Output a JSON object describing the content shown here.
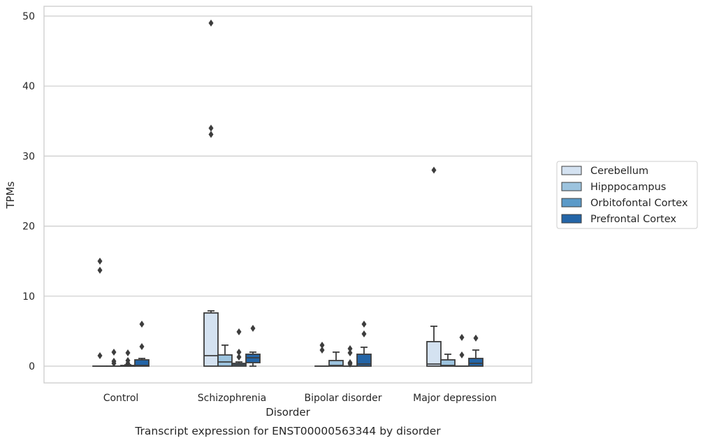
{
  "chart_data": {
    "type": "box",
    "title": "",
    "caption": "Transcript expression for ENST00000563344 by disorder",
    "xlabel": "Disorder",
    "ylabel": "TPMs",
    "ylim": [
      -2.3,
      51.5
    ],
    "yticks": [
      0,
      10,
      20,
      30,
      40,
      50
    ],
    "grid": true,
    "legend_position": "right",
    "categories": [
      "Control",
      "Schizophrenia",
      "Bipolar disorder",
      "Major depression"
    ],
    "series": [
      {
        "name": "Cerebellum",
        "color": "#d4e2f1",
        "boxes": [
          {
            "q1": 0,
            "median": 0,
            "q3": 0,
            "whisker_low": 0,
            "whisker_high": 0,
            "outliers": [
              15.0,
              13.7,
              1.5
            ]
          },
          {
            "q1": 0,
            "median": 1.5,
            "q3": 7.6,
            "whisker_low": 0,
            "whisker_high": 7.9,
            "outliers": [
              49.0,
              34.0,
              33.1
            ]
          },
          {
            "q1": 0,
            "median": 0,
            "q3": 0,
            "whisker_low": 0,
            "whisker_high": 0,
            "outliers": [
              3.0,
              2.3
            ]
          },
          {
            "q1": 0,
            "median": 0.3,
            "q3": 3.5,
            "whisker_low": 0,
            "whisker_high": 5.7,
            "outliers": [
              28.0
            ]
          }
        ]
      },
      {
        "name": "Hipppocampus",
        "color": "#9cc3de",
        "boxes": [
          {
            "q1": 0,
            "median": 0,
            "q3": 0,
            "whisker_low": 0,
            "whisker_high": 0,
            "outliers": [
              2.0,
              0.7,
              0.4
            ]
          },
          {
            "q1": 0,
            "median": 0.6,
            "q3": 1.6,
            "whisker_low": 0,
            "whisker_high": 3.0,
            "outliers": []
          },
          {
            "q1": 0,
            "median": 0.1,
            "q3": 0.8,
            "whisker_low": 0,
            "whisker_high": 2.0,
            "outliers": []
          },
          {
            "q1": 0,
            "median": 0.1,
            "q3": 0.9,
            "whisker_low": 0,
            "whisker_high": 1.7,
            "outliers": []
          }
        ]
      },
      {
        "name": "Orbitofontal Cortex",
        "color": "#5b9ac8",
        "boxes": [
          {
            "q1": 0,
            "median": 0,
            "q3": 0.1,
            "whisker_low": 0,
            "whisker_high": 0.2,
            "outliers": [
              1.9,
              0.8,
              0.4
            ]
          },
          {
            "q1": 0,
            "median": 0.2,
            "q3": 0.4,
            "whisker_low": 0,
            "whisker_high": 0.6,
            "outliers": [
              4.9,
              2.0,
              1.3
            ]
          },
          {
            "q1": 0,
            "median": 0,
            "q3": 0,
            "whisker_low": 0,
            "whisker_high": 0,
            "outliers": [
              2.5,
              1.9,
              0.5,
              0.3
            ]
          },
          {
            "q1": 0,
            "median": 0,
            "q3": 0,
            "whisker_low": 0,
            "whisker_high": 0,
            "outliers": [
              4.1,
              1.6
            ]
          }
        ]
      },
      {
        "name": "Prefrontal Cortex",
        "color": "#2465a7",
        "boxes": [
          {
            "q1": 0,
            "median": 0.1,
            "q3": 0.9,
            "whisker_low": 0,
            "whisker_high": 1.1,
            "outliers": [
              6.0,
              2.8
            ]
          },
          {
            "q1": 0.5,
            "median": 1.2,
            "q3": 1.7,
            "whisker_low": 0,
            "whisker_high": 2.0,
            "outliers": [
              5.4
            ]
          },
          {
            "q1": 0,
            "median": 0.3,
            "q3": 1.7,
            "whisker_low": 0,
            "whisker_high": 2.7,
            "outliers": [
              6.0,
              4.6
            ]
          },
          {
            "q1": 0,
            "median": 0.4,
            "q3": 1.1,
            "whisker_low": 0,
            "whisker_high": 2.3,
            "outliers": [
              4.0
            ]
          }
        ]
      }
    ]
  }
}
